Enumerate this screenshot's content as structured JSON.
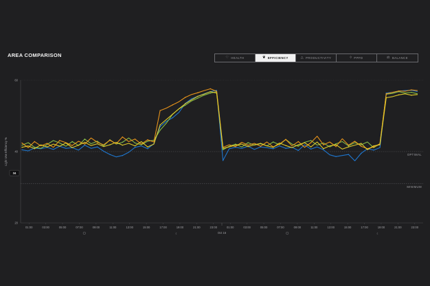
{
  "title": "AREA COMPARISON",
  "tabs": [
    {
      "label": "HEALTH",
      "icon": "heart-icon",
      "active": false
    },
    {
      "label": "EFFICIENCY",
      "icon": "leaf-icon",
      "active": true
    },
    {
      "label": "PRODUCTIVITY",
      "icon": "flask-icon",
      "active": false
    },
    {
      "label": "PPFD",
      "icon": "bulb-icon",
      "active": false
    },
    {
      "label": "BALANCE",
      "icon": "scale-icon",
      "active": false
    }
  ],
  "chart_data": {
    "type": "line",
    "ylabel": "Light Use Efficiency %",
    "ylim": [
      20,
      60
    ],
    "yticks": [
      "60",
      "40",
      "20"
    ],
    "current_value": "34",
    "reference_lines": [
      {
        "label": "OPTIMAL",
        "value": 40
      },
      {
        "label": "MINIMUM",
        "value": 31
      }
    ],
    "xticks": [
      "01:00",
      "03:00",
      "05:00",
      "07:00",
      "09:00",
      "11:00",
      "13:00",
      "15:00",
      "17:00",
      "19:00",
      "21:00",
      "23:00",
      "01:00",
      "03:00",
      "05:00",
      "07:00",
      "09:00",
      "11:00",
      "13:00",
      "15:00",
      "17:00",
      "19:00",
      "21:00",
      "23:00"
    ],
    "date_label": "Oct 16",
    "day_markers": [
      "sun",
      "moon",
      "sun",
      "moon"
    ],
    "colors": {
      "blue": "#1f7bd8",
      "green": "#8bc34a",
      "orange": "#f29a1a",
      "yellow": "#e8d22a",
      "grid": "#3a3a3e"
    },
    "series": [
      {
        "color": "#1f7bd8",
        "values": [
          40.5,
          40.2,
          41,
          40.8,
          41.2,
          40.6,
          41.5,
          40.9,
          41.1,
          40.4,
          41.8,
          40.9,
          41.3,
          40.1,
          39.2,
          38.5,
          38.9,
          39.8,
          41.2,
          41.6,
          40.8,
          42.2,
          47,
          48.5,
          49.5,
          51,
          53.5,
          54.8,
          55.5,
          56.2,
          56.8,
          57.2,
          37.5,
          40.8,
          41.2,
          40.9,
          41.5,
          40.6,
          41.3,
          41.1,
          40.8,
          41.6,
          40.9,
          41.2,
          40.3,
          41.9,
          40.7,
          41.3,
          40.5,
          39.1,
          38.6,
          38.9,
          39.2,
          37.4,
          39.5,
          40.8,
          40.4,
          41.1,
          56.4,
          56.6,
          56.9,
          57.1,
          57.2,
          56.8
        ]
      },
      {
        "color": "#8bc34a",
        "values": [
          41.8,
          42.5,
          41.2,
          40.9,
          42,
          43.1,
          42.4,
          41.5,
          42.8,
          41.7,
          43.5,
          42.2,
          42.9,
          41.6,
          43.3,
          42.1,
          42.6,
          43.8,
          42.4,
          41.9,
          42.9,
          43.2,
          46,
          48,
          50.5,
          52,
          53,
          54.2,
          55,
          55.8,
          56.4,
          56.8,
          40.5,
          41.5,
          42.1,
          41.3,
          42.5,
          41.8,
          42.2,
          41.6,
          42.7,
          41.9,
          43.4,
          42.1,
          41.5,
          42.6,
          43.1,
          41.8,
          42.4,
          41.3,
          42.2,
          42.8,
          41.6,
          42.5,
          41.9,
          42.7,
          41.1,
          42.2,
          56.1,
          56.3,
          56.8,
          56.4,
          56.6,
          56.2
        ]
      },
      {
        "color": "#f29a1a",
        "values": [
          42.4,
          41.1,
          42.8,
          41.6,
          42.3,
          41.2,
          43.1,
          42.5,
          41.7,
          42.9,
          42.1,
          43.8,
          42.6,
          41.9,
          43.2,
          42.2,
          44.1,
          42.8,
          43.5,
          42.1,
          43.3,
          42.7,
          51.5,
          52.2,
          53.1,
          54,
          55.2,
          56,
          56.5,
          57.1,
          57.6,
          56.9,
          41.2,
          41.9,
          41.4,
          42.6,
          41.8,
          42.3,
          41.5,
          42.7,
          41.3,
          42.1,
          43.4,
          41.6,
          42.8,
          41.2,
          42.5,
          44.3,
          41.9,
          42.7,
          41.4,
          43.6,
          41.8,
          42.9,
          41.5,
          40.8,
          41.3,
          42.2,
          56.2,
          56.6,
          57,
          56.9,
          57.3,
          57.1
        ]
      },
      {
        "color": "#e8d22a",
        "values": [
          41.2,
          41.6,
          40.8,
          41.9,
          41.3,
          42.1,
          41.5,
          42.4,
          41.1,
          41.8,
          42.6,
          41.7,
          42.2,
          41.4,
          41.9,
          42.6,
          41.8,
          42.3,
          41.6,
          42.8,
          41.3,
          42.1,
          47.5,
          49,
          50.5,
          52,
          53.4,
          54.5,
          55.5,
          56.1,
          56.8,
          56.4,
          40.9,
          41.3,
          41.8,
          42.1,
          41.4,
          41.9,
          42.3,
          41.6,
          41.2,
          42.4,
          41.7,
          41.1,
          41.9,
          42.5,
          41.3,
          42.7,
          40.8,
          41.6,
          41.9,
          40.7,
          41.3,
          41.8,
          42.3,
          40.5,
          41.6,
          41.9,
          55.1,
          55.4,
          55.9,
          56.2,
          55.8,
          56
        ]
      }
    ]
  }
}
